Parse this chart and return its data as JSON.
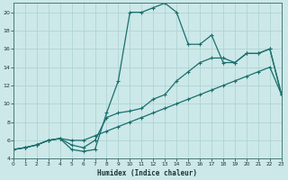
{
  "xlabel": "Humidex (Indice chaleur)",
  "bg_color": "#cce8e8",
  "grid_color": "#aad0d0",
  "line_color": "#1a6e6e",
  "xlim": [
    0,
    23
  ],
  "ylim": [
    4,
    21
  ],
  "xticks": [
    0,
    1,
    2,
    3,
    4,
    5,
    6,
    7,
    8,
    9,
    10,
    11,
    12,
    13,
    14,
    15,
    16,
    17,
    18,
    19,
    20,
    21,
    22,
    23
  ],
  "yticks": [
    4,
    6,
    8,
    10,
    12,
    14,
    16,
    18,
    20
  ],
  "line1_x": [
    0,
    1,
    2,
    3,
    4,
    5,
    6,
    7,
    8,
    9,
    10,
    11,
    12,
    13,
    14,
    15,
    16,
    17,
    18,
    19,
    20,
    21,
    22,
    23
  ],
  "line1_y": [
    5.0,
    5.2,
    5.5,
    6.0,
    6.2,
    6.0,
    6.0,
    6.5,
    7.0,
    7.5,
    8.0,
    8.5,
    9.0,
    9.5,
    10.0,
    10.5,
    11.0,
    11.5,
    12.0,
    12.5,
    13.0,
    13.5,
    14.0,
    11.0
  ],
  "line2_x": [
    0,
    1,
    2,
    3,
    4,
    5,
    6,
    7,
    8,
    9,
    10,
    11,
    12,
    13,
    14,
    15,
    16,
    17,
    18,
    19,
    20,
    21,
    22,
    23
  ],
  "line2_y": [
    5.0,
    5.2,
    5.5,
    6.0,
    6.2,
    5.5,
    5.2,
    6.0,
    8.5,
    9.0,
    9.2,
    9.5,
    10.5,
    11.0,
    12.5,
    13.5,
    14.5,
    15.0,
    15.0,
    14.5,
    15.5,
    15.5,
    16.0,
    11.0
  ],
  "line3_x": [
    0,
    1,
    2,
    3,
    4,
    5,
    6,
    7,
    8,
    9,
    10,
    11,
    12,
    13,
    14,
    15,
    16,
    17,
    18,
    19,
    20,
    21,
    22,
    23
  ],
  "line3_y": [
    5.0,
    5.2,
    5.5,
    6.0,
    6.2,
    5.0,
    4.8,
    5.0,
    9.0,
    12.5,
    20.0,
    20.0,
    20.5,
    21.0,
    20.0,
    16.5,
    16.5,
    17.5,
    14.5,
    14.5,
    15.5,
    15.5,
    16.0,
    11.0
  ]
}
